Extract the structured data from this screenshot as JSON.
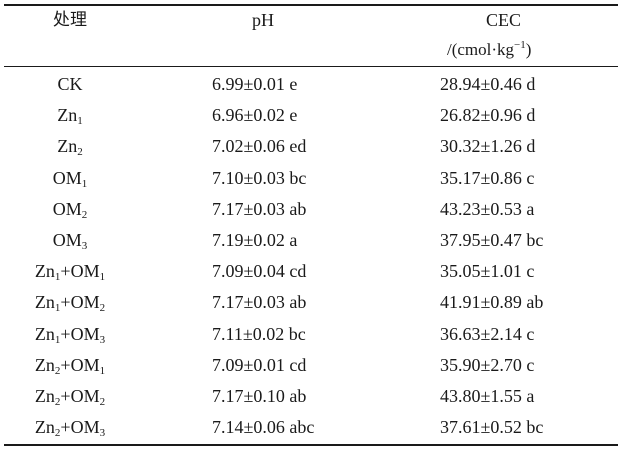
{
  "table": {
    "headers": {
      "treatment": "处理",
      "ph": "pH",
      "cec": "CEC",
      "cec_unit_prefix": "/(",
      "cec_unit_main": "cmol·kg",
      "cec_unit_exp": "−1",
      "cec_unit_suffix": ")"
    },
    "rows": [
      {
        "t1": "CK",
        "t1s": "",
        "t2": "",
        "t2s": "",
        "ph": "6.99±0.01 e",
        "cec": "28.94±0.46 d"
      },
      {
        "t1": "Zn",
        "t1s": "1",
        "t2": "",
        "t2s": "",
        "ph": "6.96±0.02 e",
        "cec": "26.82±0.96 d"
      },
      {
        "t1": "Zn",
        "t1s": "2",
        "t2": "",
        "t2s": "",
        "ph": "7.02±0.06 ed",
        "cec": "30.32±1.26 d"
      },
      {
        "t1": "OM",
        "t1s": "1",
        "t2": "",
        "t2s": "",
        "ph": "7.10±0.03 bc",
        "cec": "35.17±0.86 c"
      },
      {
        "t1": "OM",
        "t1s": "2",
        "t2": "",
        "t2s": "",
        "ph": "7.17±0.03 ab",
        "cec": "43.23±0.53 a"
      },
      {
        "t1": "OM",
        "t1s": "3",
        "t2": "",
        "t2s": "",
        "ph": "7.19±0.02 a",
        "cec": "37.95±0.47 bc"
      },
      {
        "t1": "Zn",
        "t1s": "1",
        "t2": "+OM",
        "t2s": "1",
        "ph": "7.09±0.04 cd",
        "cec": "35.05±1.01 c"
      },
      {
        "t1": "Zn",
        "t1s": "1",
        "t2": "+OM",
        "t2s": "2",
        "ph": "7.17±0.03 ab",
        "cec": "41.91±0.89 ab"
      },
      {
        "t1": "Zn",
        "t1s": "1",
        "t2": "+OM",
        "t2s": "3",
        "ph": "7.11±0.02 bc",
        "cec": "36.63±2.14 c"
      },
      {
        "t1": "Zn",
        "t1s": "2",
        "t2": "+OM",
        "t2s": "1",
        "ph": "7.09±0.01 cd",
        "cec": "35.90±2.70 c"
      },
      {
        "t1": "Zn",
        "t1s": "2",
        "t2": "+OM",
        "t2s": "2",
        "ph": "7.17±0.10 ab",
        "cec": "43.80±1.55 a"
      },
      {
        "t1": "Zn",
        "t1s": "2",
        "t2": "+OM",
        "t2s": "3",
        "ph": "7.14±0.06 abc",
        "cec": "37.61±0.52 bc"
      }
    ]
  }
}
